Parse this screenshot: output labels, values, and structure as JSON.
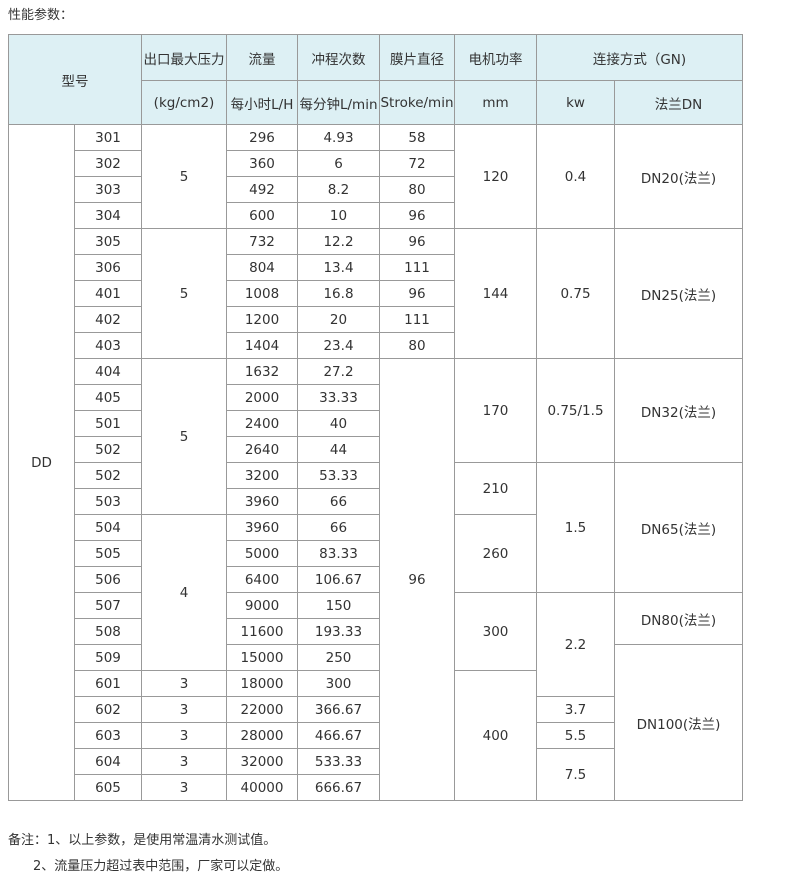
{
  "title": "性能参数：",
  "header": {
    "model": "型号",
    "pressure": "出口最大压力",
    "pressure_unit": "(kg/cm2)",
    "flow": "流量",
    "flow_unit": "每小时L/H",
    "stroke": "冲程次数",
    "stroke_unit": "每分钟L/min",
    "diaphragm": "膜片直径",
    "diaphragm_unit": "Stroke/min",
    "motor": "电机功率",
    "motor_unit": "mm",
    "connection": "连接方式（GN)",
    "kw_unit": "kw",
    "flange_unit": "法兰DN"
  },
  "rows": [
    [
      {
        "v": "DD",
        "span": 26
      },
      {
        "v": "301"
      },
      {
        "v": "5",
        "span": 4
      },
      {
        "v": "296"
      },
      {
        "v": "4.93"
      },
      {
        "v": "58"
      },
      {
        "v": "120",
        "span": 4
      },
      {
        "v": "0.4",
        "span": 4
      },
      {
        "v": "DN20(法兰)",
        "span": 4
      }
    ],
    [
      {
        "v": "302"
      },
      {
        "v": "360"
      },
      {
        "v": "6"
      },
      {
        "v": "72"
      }
    ],
    [
      {
        "v": "303"
      },
      {
        "v": "492"
      },
      {
        "v": "8.2"
      },
      {
        "v": "80"
      }
    ],
    [
      {
        "v": "304"
      },
      {
        "v": "600"
      },
      {
        "v": "10"
      },
      {
        "v": "96"
      }
    ],
    [
      {
        "v": "305"
      },
      {
        "v": "5",
        "span": 5
      },
      {
        "v": "732"
      },
      {
        "v": "12.2"
      },
      {
        "v": "96"
      },
      {
        "v": "144",
        "span": 5
      },
      {
        "v": "0.75",
        "span": 5
      },
      {
        "v": "DN25(法兰)",
        "span": 5
      }
    ],
    [
      {
        "v": "306"
      },
      {
        "v": "804"
      },
      {
        "v": "13.4"
      },
      {
        "v": "111"
      }
    ],
    [
      {
        "v": "401"
      },
      {
        "v": "1008"
      },
      {
        "v": "16.8"
      },
      {
        "v": "96"
      }
    ],
    [
      {
        "v": "402"
      },
      {
        "v": "1200"
      },
      {
        "v": "20"
      },
      {
        "v": "111"
      }
    ],
    [
      {
        "v": "403"
      },
      {
        "v": "1404"
      },
      {
        "v": "23.4"
      },
      {
        "v": "80"
      }
    ],
    [
      {
        "v": "404"
      },
      {
        "v": "5",
        "span": 6
      },
      {
        "v": "1632"
      },
      {
        "v": "27.2"
      },
      {
        "v": "96",
        "span": 17
      },
      {
        "v": "170",
        "span": 4
      },
      {
        "v": "0.75/1.5",
        "span": 4
      },
      {
        "v": "DN32(法兰)",
        "span": 4
      }
    ],
    [
      {
        "v": "405"
      },
      {
        "v": "2000"
      },
      {
        "v": "33.33"
      }
    ],
    [
      {
        "v": "501"
      },
      {
        "v": "2400"
      },
      {
        "v": "40"
      }
    ],
    [
      {
        "v": "502"
      },
      {
        "v": "2640"
      },
      {
        "v": "44"
      }
    ],
    [
      {
        "v": "502"
      },
      {
        "v": "3200"
      },
      {
        "v": "53.33"
      },
      {
        "v": "210",
        "span": 2
      },
      {
        "v": "1.5",
        "span": 5
      },
      {
        "v": "DN65(法兰)",
        "span": 5
      }
    ],
    [
      {
        "v": "503"
      },
      {
        "v": "3960"
      },
      {
        "v": "66"
      }
    ],
    [
      {
        "v": "504"
      },
      {
        "v": "4",
        "span": 6
      },
      {
        "v": "3960"
      },
      {
        "v": "66"
      },
      {
        "v": "260",
        "span": 3
      }
    ],
    [
      {
        "v": "505"
      },
      {
        "v": "5000"
      },
      {
        "v": "83.33"
      }
    ],
    [
      {
        "v": "506"
      },
      {
        "v": "6400"
      },
      {
        "v": "106.67"
      }
    ],
    [
      {
        "v": "507"
      },
      {
        "v": "9000"
      },
      {
        "v": "150"
      },
      {
        "v": "300",
        "span": 3
      },
      {
        "v": "2.2",
        "span": 4
      },
      {
        "v": "DN80(法兰)",
        "span": 2
      }
    ],
    [
      {
        "v": "508"
      },
      {
        "v": "11600"
      },
      {
        "v": "193.33"
      }
    ],
    [
      {
        "v": "509"
      },
      {
        "v": "15000"
      },
      {
        "v": "250"
      },
      {
        "v": "DN100(法兰)",
        "span": 6
      }
    ],
    [
      {
        "v": "601"
      },
      {
        "v": "3"
      },
      {
        "v": "18000"
      },
      {
        "v": "300"
      },
      {
        "v": "400",
        "span": 5
      }
    ],
    [
      {
        "v": "602"
      },
      {
        "v": "3"
      },
      {
        "v": "22000"
      },
      {
        "v": "366.67"
      },
      {
        "v": "3.7"
      }
    ],
    [
      {
        "v": "603"
      },
      {
        "v": "3"
      },
      {
        "v": "28000"
      },
      {
        "v": "466.67"
      },
      {
        "v": "5.5"
      }
    ],
    [
      {
        "v": "604"
      },
      {
        "v": "3"
      },
      {
        "v": "32000"
      },
      {
        "v": "533.33"
      },
      {
        "v": "7.5",
        "span": 2
      }
    ],
    [
      {
        "v": "605"
      },
      {
        "v": "3"
      },
      {
        "v": "40000"
      },
      {
        "v": "666.67"
      }
    ]
  ],
  "notes": [
    "备注：1、以上参数，是使用常温清水测试值。",
    "2、流量压力超过表中范围，厂家可以定做。"
  ]
}
